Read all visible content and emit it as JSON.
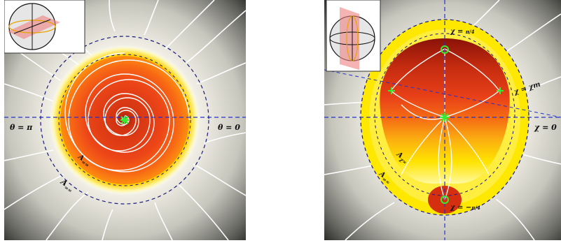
{
  "left_panel": {
    "theta_pi_label": "θ = π",
    "theta_zero_label": "θ = 0",
    "a_oo_label": "A",
    "a_oo_sub": "∞∞",
    "a_oo_inner_label": "A",
    "a_oo_inner_sub": "∞∞"
  },
  "right_panel": {
    "chi_top_label": "χ = ",
    "chi_top_frac": "π/4",
    "chi_bottom_label": "χ = −",
    "chi_bottom_frac": "π/4",
    "chi_m_label": "χ = χm",
    "chi_zero_label": "χ = 0",
    "a_xo_label": "A",
    "a_xo_sub": "χ∞",
    "a_oo_label": "A",
    "a_oo_sub": "∞∞"
  },
  "colors": {
    "flow_lines": "#ffffff",
    "axis_dash": "#2233cc",
    "fixed_point": "#33ee33",
    "core_red": "#e8401a",
    "halo_yellow": "#ffe600"
  }
}
